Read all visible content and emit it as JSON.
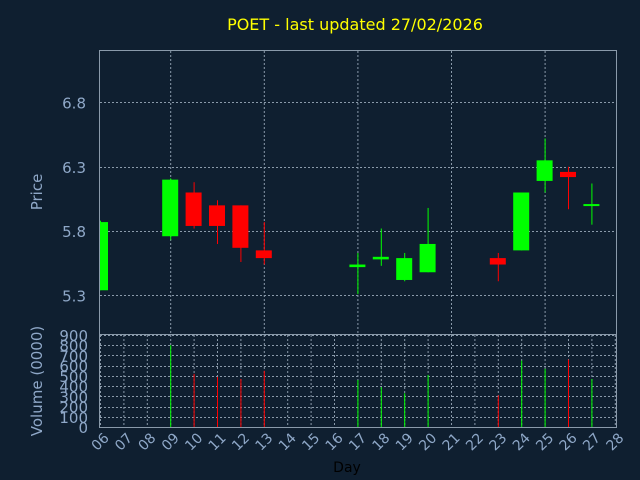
{
  "chart_data": {
    "type": "candlestick",
    "title": "POET - last updated 27/02/2026",
    "xlabel": "Day",
    "ylabel_price": "Price",
    "ylabel_volume": "Volume (0000)",
    "x_ticks": [
      "06",
      "07",
      "08",
      "09",
      "10",
      "11",
      "12",
      "13",
      "14",
      "15",
      "16",
      "17",
      "18",
      "19",
      "20",
      "21",
      "22",
      "23",
      "24",
      "25",
      "26",
      "27",
      "28"
    ],
    "price_ticks": [
      "5.3",
      "5.8",
      "6.3",
      "6.8"
    ],
    "volume_ticks": [
      "0",
      "100",
      "200",
      "300",
      "400",
      "500",
      "600",
      "700",
      "800",
      "900"
    ],
    "price_range": [
      5.0,
      7.2
    ],
    "volume_range": [
      0,
      900
    ],
    "grid": true,
    "colors": {
      "background": "#0f1f30",
      "axis_text": "#8fa8c8",
      "title": "#ffff00",
      "up": "#00ff00",
      "down": "#ff0000",
      "grid": "#8a9aaa"
    },
    "candles": [
      {
        "day": "06",
        "open": 5.34,
        "high": 5.88,
        "low": 5.34,
        "close": 5.87,
        "volume": 0
      },
      {
        "day": "09",
        "open": 5.76,
        "high": 6.21,
        "low": 5.73,
        "close": 6.2,
        "volume": 800
      },
      {
        "day": "10",
        "open": 6.1,
        "high": 6.18,
        "low": 5.82,
        "close": 5.84,
        "volume": 520
      },
      {
        "day": "11",
        "open": 6.0,
        "high": 6.04,
        "low": 5.7,
        "close": 5.84,
        "volume": 490
      },
      {
        "day": "12",
        "open": 6.0,
        "high": 6.0,
        "low": 5.56,
        "close": 5.67,
        "volume": 470
      },
      {
        "day": "13",
        "open": 5.65,
        "high": 5.87,
        "low": 5.54,
        "close": 5.59,
        "volume": 550
      },
      {
        "day": "17",
        "open": 5.52,
        "high": 5.63,
        "low": 5.31,
        "close": 5.54,
        "volume": 460
      },
      {
        "day": "18",
        "open": 5.58,
        "high": 5.82,
        "low": 5.53,
        "close": 5.6,
        "volume": 390
      },
      {
        "day": "19",
        "open": 5.42,
        "high": 5.63,
        "low": 5.41,
        "close": 5.59,
        "volume": 330
      },
      {
        "day": "20",
        "open": 5.48,
        "high": 5.98,
        "low": 5.48,
        "close": 5.7,
        "volume": 510
      },
      {
        "day": "23",
        "open": 5.59,
        "high": 5.63,
        "low": 5.41,
        "close": 5.54,
        "volume": 310
      },
      {
        "day": "24",
        "open": 5.65,
        "high": 6.1,
        "low": 5.65,
        "close": 6.1,
        "volume": 650
      },
      {
        "day": "25",
        "open": 6.19,
        "high": 6.52,
        "low": 6.1,
        "close": 6.35,
        "volume": 570
      },
      {
        "day": "26",
        "open": 6.26,
        "high": 6.3,
        "low": 5.97,
        "close": 6.22,
        "volume": 660
      },
      {
        "day": "27",
        "open": 6.0,
        "high": 6.17,
        "low": 5.85,
        "close": 6.01,
        "volume": 470
      }
    ]
  }
}
